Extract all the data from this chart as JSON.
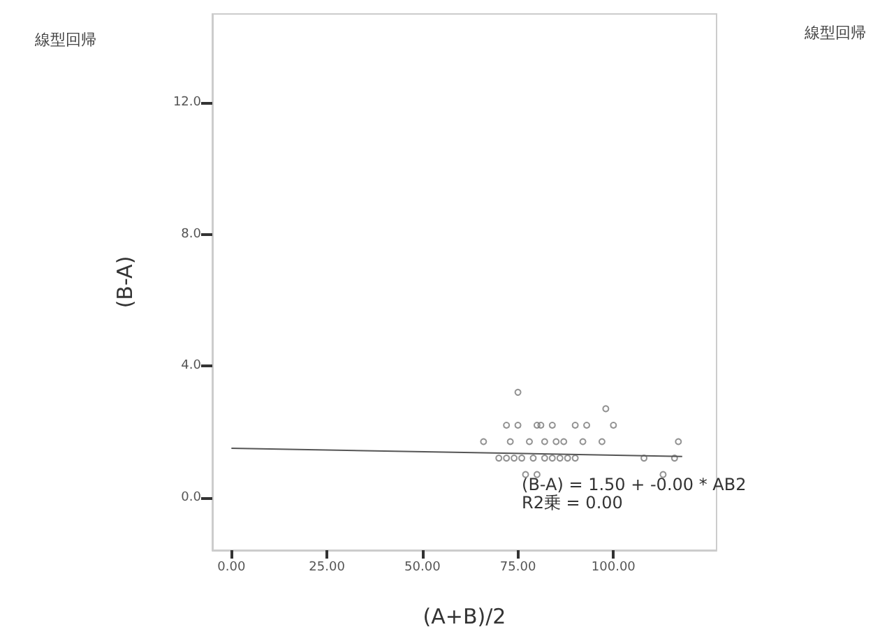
{
  "chart_data": {
    "type": "scatter",
    "title": "線型回帰",
    "xlabel": "(A+B)/2",
    "ylabel": "(B-A)",
    "annotations": [
      "(B-A) = 1.50 + -0.00 * AB2",
      "R2乗 = 0.00",
      "線型回帰"
    ],
    "xlim": [
      -5,
      127
    ],
    "ylim": [
      -1.6,
      14.7
    ],
    "xticks": [
      {
        "value": 0,
        "label": "0.00"
      },
      {
        "value": 25,
        "label": "25.00"
      },
      {
        "value": 50,
        "label": "50.00"
      },
      {
        "value": 75,
        "label": "75.00"
      },
      {
        "value": 100,
        "label": "100.00"
      }
    ],
    "yticks": [
      {
        "value": 0,
        "label": "0.0"
      },
      {
        "value": 4,
        "label": "4.0"
      },
      {
        "value": 8,
        "label": "8.0"
      },
      {
        "value": 12,
        "label": "12.0"
      }
    ],
    "grid": false,
    "marker": "circle",
    "series": [
      {
        "color": "#777777",
        "x": [
          75,
          98,
          72,
          75,
          80,
          81,
          84,
          90,
          93,
          100,
          66,
          73,
          78,
          82,
          85,
          87,
          92,
          97,
          117,
          70,
          72,
          74,
          76,
          79,
          82,
          84,
          86,
          88,
          90,
          108,
          116,
          77,
          80,
          113
        ],
        "values": [
          3.2,
          2.7,
          2.2,
          2.2,
          2.2,
          2.2,
          2.2,
          2.2,
          2.2,
          2.2,
          1.7,
          1.7,
          1.7,
          1.7,
          1.7,
          1.7,
          1.7,
          1.7,
          1.7,
          1.2,
          1.2,
          1.2,
          1.2,
          1.2,
          1.2,
          1.2,
          1.2,
          1.2,
          1.2,
          1.2,
          1.2,
          0.7,
          0.7,
          0.7
        ]
      },
      {
        "type": "line",
        "color": "#555555",
        "x": [
          0,
          118
        ],
        "values": [
          1.5,
          1.25
        ],
        "marker": "none"
      }
    ]
  }
}
